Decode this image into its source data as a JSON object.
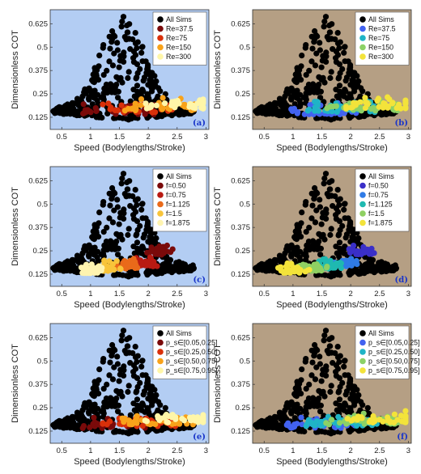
{
  "common": {
    "xlabel": "Speed (Bodylengths/Stroke)",
    "ylabel": "Dimensionless COT",
    "xticks": [
      "0.5",
      "1",
      "1.5",
      "2",
      "2.5",
      "3"
    ],
    "yticks": [
      "0.125",
      "0.25",
      "0.375",
      "0.5",
      "0.625"
    ],
    "xlim": [
      0.3,
      3.05
    ],
    "ylim": [
      0.06,
      0.7
    ],
    "all_sims_label": "All Sims",
    "all_sims_color": "#000000"
  },
  "chart_data": [
    {
      "panel": "a",
      "type": "scatter",
      "bg": "#b3cdf3",
      "series_names": [
        "All Sims",
        "Re=37.5",
        "Re=75",
        "Re=150",
        "Re=300"
      ],
      "colors": [
        "#000000",
        "#7a0a0a",
        "#d9300a",
        "#f8a21a",
        "#fff6a8"
      ]
    },
    {
      "panel": "b",
      "type": "scatter",
      "bg": "#b59f84",
      "series_names": [
        "All Sims",
        "Re=37.5",
        "Re=75",
        "Re=150",
        "Re=300"
      ],
      "colors": [
        "#000000",
        "#4262f0",
        "#1fb4c6",
        "#8cd166",
        "#f3e33a"
      ]
    },
    {
      "panel": "c",
      "type": "scatter",
      "bg": "#b3cdf3",
      "series_names": [
        "All Sims",
        "f=0.50",
        "f=0.75",
        "f=1.125",
        "f=1.5",
        "f=1.875"
      ],
      "colors": [
        "#000000",
        "#7a0a0a",
        "#b81a12",
        "#e96a1a",
        "#f8c43a",
        "#fff4b0"
      ]
    },
    {
      "panel": "d",
      "type": "scatter",
      "bg": "#b59f84",
      "series_names": [
        "All Sims",
        "f=0.50",
        "f=0.75",
        "f=1.125",
        "f=1.5",
        "f=1.875"
      ],
      "colors": [
        "#000000",
        "#3a2fc8",
        "#2f7be6",
        "#1fb9b0",
        "#8fd062",
        "#f3e33a"
      ]
    },
    {
      "panel": "e",
      "type": "scatter",
      "bg": "#b3cdf3",
      "series_names": [
        "All Sims",
        "p_s∈[0.05,0.25]",
        "p_s∈[0.25,0.50]",
        "p_s∈[0.50,0.75]",
        "p_s∈[0.75,0.95]"
      ],
      "colors": [
        "#000000",
        "#7a0a0a",
        "#d9300a",
        "#f8a21a",
        "#fff6a8"
      ]
    },
    {
      "panel": "f",
      "type": "scatter",
      "bg": "#b59f84",
      "series_names": [
        "All Sims",
        "p_s∈[0.05,0.25]",
        "p_s∈[0.25,0.50]",
        "p_s∈[0.50,0.75]",
        "p_s∈[0.75,0.95]"
      ],
      "colors": [
        "#000000",
        "#4262f0",
        "#1fb4c6",
        "#8cd166",
        "#f3e33a"
      ]
    }
  ],
  "panel_labels": [
    "(a)",
    "(b)",
    "(c)",
    "(d)",
    "(e)",
    "(f)"
  ]
}
